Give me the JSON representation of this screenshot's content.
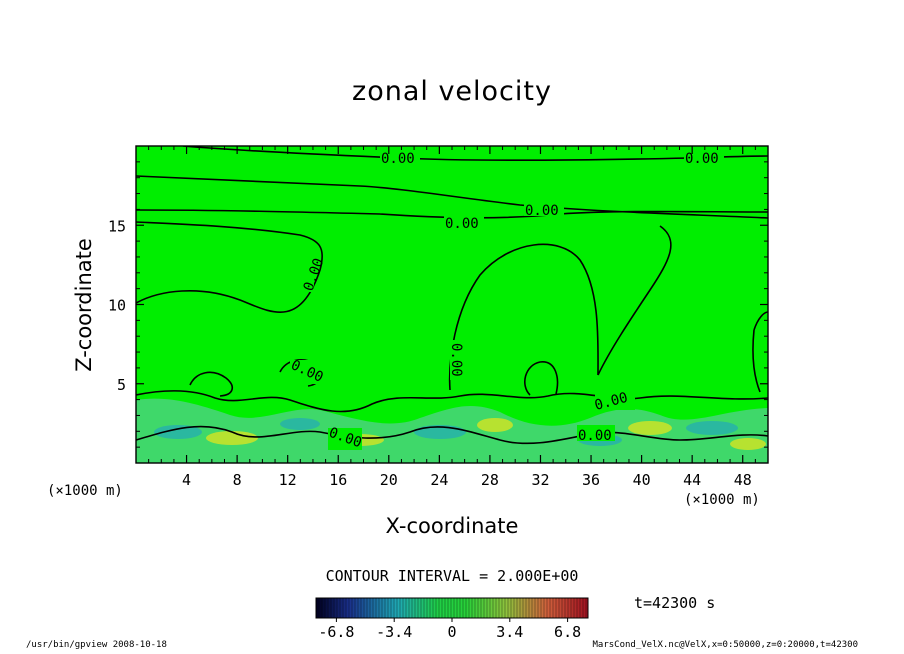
{
  "chart_data": {
    "type": "heatmap",
    "title": "zonal velocity",
    "xlabel": "X-coordinate",
    "ylabel": "Z-coordinate",
    "x_unit": "(×1000 m)",
    "y_unit": "(×1000 m)",
    "xlim": [
      0,
      50
    ],
    "ylim": [
      0,
      20
    ],
    "x_ticks": [
      "4",
      "8",
      "12",
      "16",
      "20",
      "24",
      "28",
      "32",
      "36",
      "40",
      "44",
      "48"
    ],
    "y_ticks": [
      "5",
      "10",
      "15"
    ],
    "contour_interval_label": "CONTOUR INTERVAL = 2.000E+00",
    "contour_labels": [
      "0.00",
      "0.00",
      "0.00",
      "0.00",
      "0.00",
      "0.00",
      "0.00",
      "0.00",
      "0.00",
      "0.00",
      "0.00"
    ],
    "colorbar": {
      "min": -8,
      "max": 8,
      "ticks": [
        "-6.8",
        "-3.4",
        "0",
        "3.4",
        "6.8"
      ]
    },
    "time_label": "t=42300 s"
  },
  "footer": {
    "left": "/usr/bin/gpview  2008-10-18",
    "right": "MarsCond_VelX.nc@VelX,x=0:50000,z=0:20000,t=42300"
  }
}
